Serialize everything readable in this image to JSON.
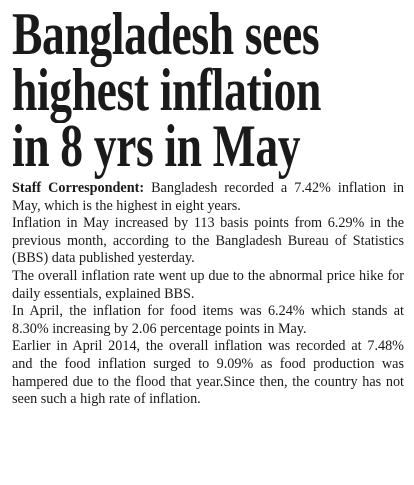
{
  "headline": {
    "lines": [
      "Bangladesh sees",
      "highest inflation",
      "in 8 yrs in May"
    ]
  },
  "article": {
    "byline": "Staff Correspondent:",
    "lead": "Bangladesh recorded a 7.42% inflation in May, which is the highest in eight years.",
    "paragraphs": [
      "Inflation in May increased by 113 basis points from 6.29% in the previous month, according to the Bangladesh Bureau of Statistics (BBS) data published yesterday.",
      "The overall inflation rate went up due to the abnormal price hike for daily essentials, explained BBS.",
      "In April, the inflation for food items was 6.24% which stands at 8.30% increasing by 2.06 percentage points in May.",
      "Earlier in April 2014, the overall inflation was recorded at 7.48% and the food inflation surged to 9.09% as food production was hampered due to the flood that year.Since then, the country has not seen such a high rate of inflation."
    ]
  }
}
